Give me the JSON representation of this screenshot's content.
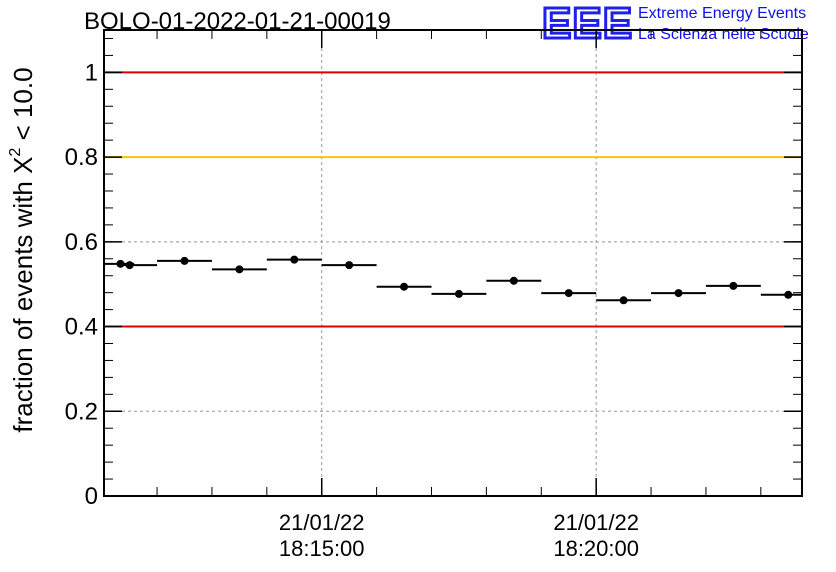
{
  "header": {
    "run_title": "BOLO-01-2022-01-21-00019"
  },
  "logo": {
    "mark": "EEE",
    "line1": "Extreme Energy Events",
    "line2": "La Scienza nelle Scuole",
    "color": "#1a1aee"
  },
  "chart_data": {
    "type": "scatter",
    "title": "BOLO-01-2022-01-21-00019",
    "ylabel_prefix": "fraction of events with X",
    "ylabel_superscript": "2",
    "ylabel_suffix": " < 10.0",
    "ylim": [
      0,
      1.1
    ],
    "y_ticks": [
      0,
      0.2,
      0.4,
      0.6,
      0.8,
      1
    ],
    "y_tick_labels": [
      "0",
      "0.2",
      "0.4",
      "0.6",
      "0.8",
      "1"
    ],
    "x_range": [
      "18:11:02",
      "18:23:45"
    ],
    "x_tick_labels": [
      {
        "time": "18:15:00",
        "date": "21/01/22"
      },
      {
        "time": "18:20:00",
        "date": "21/01/22"
      }
    ],
    "grid": true,
    "reference_lines": [
      {
        "y": 1.0,
        "color": "#dd0000"
      },
      {
        "y": 0.8,
        "color": "#ffc000"
      },
      {
        "y": 0.4,
        "color": "#dd0000"
      }
    ],
    "series": [
      {
        "marker_color": "#000000",
        "points": [
          {
            "x_start": "18:11:02",
            "x_end": "18:11:35",
            "x": "18:11:20",
            "y": 0.548
          },
          {
            "x_start": "18:11:20",
            "x_end": "18:12:00",
            "x": "18:11:30",
            "y": 0.545
          },
          {
            "x_start": "18:12:00",
            "x_end": "18:13:00",
            "x": "18:12:30",
            "y": 0.555
          },
          {
            "x_start": "18:13:00",
            "x_end": "18:14:00",
            "x": "18:13:30",
            "y": 0.535
          },
          {
            "x_start": "18:14:00",
            "x_end": "18:15:00",
            "x": "18:14:30",
            "y": 0.558
          },
          {
            "x_start": "18:15:00",
            "x_end": "18:16:00",
            "x": "18:15:30",
            "y": 0.545
          },
          {
            "x_start": "18:16:00",
            "x_end": "18:17:00",
            "x": "18:16:30",
            "y": 0.494
          },
          {
            "x_start": "18:17:00",
            "x_end": "18:18:00",
            "x": "18:17:30",
            "y": 0.477
          },
          {
            "x_start": "18:18:00",
            "x_end": "18:19:00",
            "x": "18:18:30",
            "y": 0.508
          },
          {
            "x_start": "18:19:00",
            "x_end": "18:20:00",
            "x": "18:19:30",
            "y": 0.479
          },
          {
            "x_start": "18:20:00",
            "x_end": "18:21:00",
            "x": "18:20:30",
            "y": 0.462
          },
          {
            "x_start": "18:21:00",
            "x_end": "18:22:00",
            "x": "18:21:30",
            "y": 0.479
          },
          {
            "x_start": "18:22:00",
            "x_end": "18:23:00",
            "x": "18:22:30",
            "y": 0.496
          },
          {
            "x_start": "18:23:00",
            "x_end": "18:23:45",
            "x": "18:23:30",
            "y": 0.475
          }
        ]
      }
    ]
  }
}
